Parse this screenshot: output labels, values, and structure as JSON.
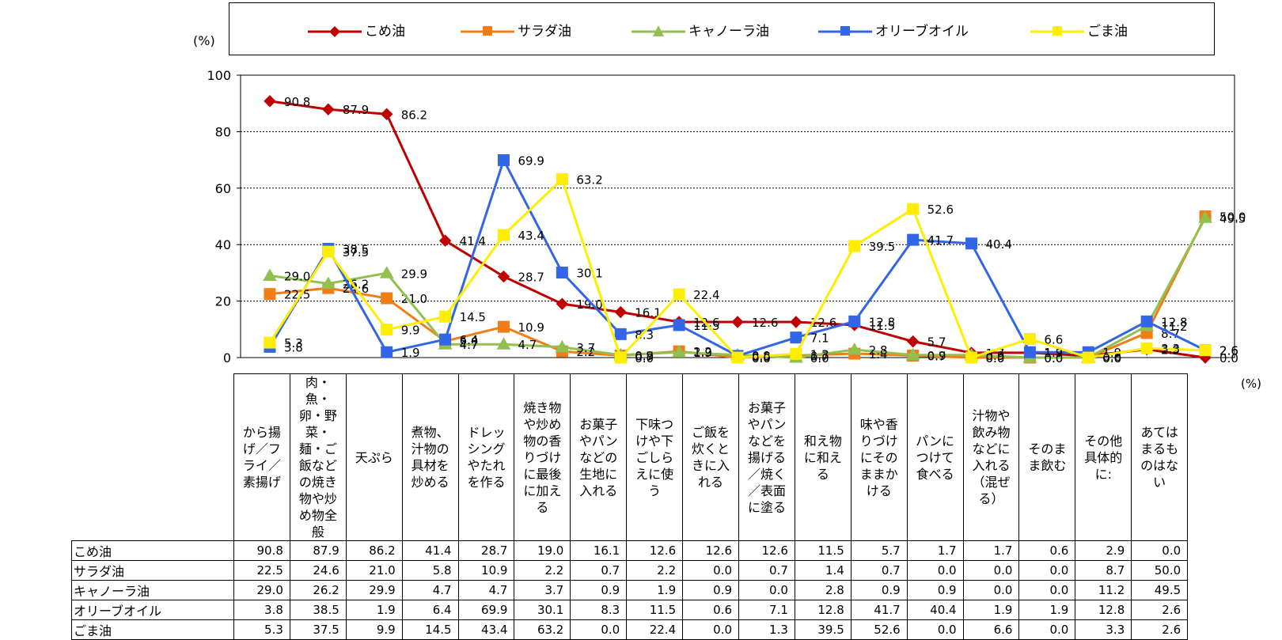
{
  "chart_data": {
    "type": "line",
    "y_unit_label": "(%)",
    "x_unit_label": "(%)",
    "ylim": [
      0,
      100
    ],
    "yticks": [
      "0",
      "20",
      "40",
      "60",
      "80",
      "100"
    ],
    "grid": true,
    "legend_position": "top",
    "categories": [
      "から揚げ／フライ／素揚げ",
      "肉・魚・卵・野菜・麺・ご飯などの焼き物や炒め物全般",
      "天ぷら",
      "煮物、汁物の具材を炒める",
      "ドレッシングやたれを作る",
      "焼き物や炒め物の香りづけに最後に加える",
      "お菓子やパンなどの生地に入れる",
      "下味つけや下ごしらえに使う",
      "ご飯を炊くときに入れる",
      "お菓子やパンなどを揚げる／焼く／表面に塗る",
      "和え物に和える",
      "味や香りづけにそのままかける",
      "パンにつけて食べる",
      "汁物や飲み物などに入れる（混ぜる）",
      "そのまま飲む",
      "その他具体的に:",
      "あてはまるものはない"
    ],
    "series": [
      {
        "name": "こめ油",
        "color": "#c00000",
        "marker": "diamond",
        "values": [
          90.8,
          87.9,
          86.2,
          41.4,
          28.7,
          19.0,
          16.1,
          12.6,
          12.6,
          12.6,
          11.5,
          5.7,
          1.7,
          1.7,
          0.6,
          2.9,
          0.0
        ],
        "labels": [
          "90.8",
          "87.9",
          "86.2",
          "41.4",
          "28.7",
          "19.0",
          "16.1",
          "12.6",
          "12.6",
          "12.6",
          "11.5",
          "5.7",
          "1.7",
          "1.7",
          "0.6",
          "2.9",
          "0.0"
        ]
      },
      {
        "name": "サラダ油",
        "color": "#f07d16",
        "marker": "square",
        "values": [
          22.5,
          24.6,
          21.0,
          5.8,
          10.9,
          2.2,
          0.7,
          2.2,
          0.0,
          0.7,
          1.4,
          0.7,
          0.0,
          0.0,
          0.0,
          8.7,
          50.0
        ],
        "labels": [
          "22.5",
          "24.6",
          "21.0",
          "5.8",
          "10.9",
          "2.2",
          "0.7",
          "2.2",
          "0.0",
          "0.7",
          "1.4",
          "0.7",
          "0.0",
          "0.0",
          "0.0",
          "8.7",
          "50.0"
        ]
      },
      {
        "name": "キャノーラ油",
        "color": "#92c050",
        "marker": "triangle",
        "values": [
          29.0,
          26.2,
          29.9,
          4.7,
          4.7,
          3.7,
          0.9,
          1.9,
          0.9,
          0.0,
          2.8,
          0.9,
          0.9,
          0.0,
          0.0,
          11.2,
          49.5
        ],
        "labels": [
          "29.0",
          "26.2",
          "29.9",
          "4.7",
          "4.7",
          "3.7",
          "0.9",
          "1.9",
          "0.9",
          "0.0",
          "2.8",
          "0.9",
          "0.9",
          "0.0",
          "0.0",
          "11.2",
          "49.5"
        ]
      },
      {
        "name": "オリーブオイル",
        "color": "#3366e6",
        "marker": "square",
        "values": [
          3.8,
          38.5,
          1.9,
          6.4,
          69.9,
          30.1,
          8.3,
          11.5,
          0.6,
          7.1,
          12.8,
          41.7,
          40.4,
          1.9,
          1.9,
          12.8,
          2.6
        ],
        "labels": [
          "3.8",
          "38.5",
          "1.9",
          "6.4",
          "69.9",
          "30.1",
          "8.3",
          "11.5",
          "0.6",
          "7.1",
          "12.8",
          "41.7",
          "40.4",
          "1.9",
          "1.9",
          "12.8",
          "2.6"
        ]
      },
      {
        "name": "ごま油",
        "color": "#ffee00",
        "marker": "square",
        "values": [
          5.3,
          37.5,
          9.9,
          14.5,
          43.4,
          63.2,
          0.0,
          22.4,
          0.0,
          1.3,
          39.5,
          52.6,
          0.0,
          6.6,
          0.0,
          3.3,
          2.6
        ],
        "labels": [
          "5.3",
          "37.5",
          "9.9",
          "14.5",
          "43.4",
          "63.2",
          "0.0",
          "22.4",
          "0.0",
          "1.3",
          "39.5",
          "52.6",
          "0.0",
          "6.6",
          "0.0",
          "3.3",
          "2.6"
        ]
      }
    ]
  },
  "table": {
    "headers": [
      "から揚げ／フライ／素揚げ",
      "肉・魚・卵・野菜・麺・ご飯などの焼き物や炒め物全般",
      "天ぷら",
      "煮物、汁物の具材を炒める",
      "ドレッシングやたれを作る",
      "焼き物や炒め物の香りづけに最後に加える",
      "お菓子やパンなどの生地に入れる",
      "下味つけや下ごしらえに使う",
      "ご飯を炊くときに入れる",
      "お菓子やパンなどを揚げる／焼く／表面に塗る",
      "和え物に和える",
      "味や香りづけにそのままかける",
      "パンにつけて食べる",
      "汁物や飲み物などに入れる（混ぜる）",
      "そのまま飲む",
      "その他具体的に:",
      "あてはまるものはない"
    ],
    "rows": [
      {
        "label": "こめ油",
        "cells": [
          "90.8",
          "87.9",
          "86.2",
          "41.4",
          "28.7",
          "19.0",
          "16.1",
          "12.6",
          "12.6",
          "12.6",
          "11.5",
          "5.7",
          "1.7",
          "1.7",
          "0.6",
          "2.9",
          "0.0"
        ]
      },
      {
        "label": "サラダ油",
        "cells": [
          "22.5",
          "24.6",
          "21.0",
          "5.8",
          "10.9",
          "2.2",
          "0.7",
          "2.2",
          "0.0",
          "0.7",
          "1.4",
          "0.7",
          "0.0",
          "0.0",
          "0.0",
          "8.7",
          "50.0"
        ]
      },
      {
        "label": "キャノーラ油",
        "cells": [
          "29.0",
          "26.2",
          "29.9",
          "4.7",
          "4.7",
          "3.7",
          "0.9",
          "1.9",
          "0.9",
          "0.0",
          "2.8",
          "0.9",
          "0.9",
          "0.0",
          "0.0",
          "11.2",
          "49.5"
        ]
      },
      {
        "label": "オリーブオイル",
        "cells": [
          "3.8",
          "38.5",
          "1.9",
          "6.4",
          "69.9",
          "30.1",
          "8.3",
          "11.5",
          "0.6",
          "7.1",
          "12.8",
          "41.7",
          "40.4",
          "1.9",
          "1.9",
          "12.8",
          "2.6"
        ]
      },
      {
        "label": "ごま油",
        "cells": [
          "5.3",
          "37.5",
          "9.9",
          "14.5",
          "43.4",
          "63.2",
          "0.0",
          "22.4",
          "0.0",
          "1.3",
          "39.5",
          "52.6",
          "0.0",
          "6.6",
          "0.0",
          "3.3",
          "2.6"
        ]
      }
    ]
  }
}
